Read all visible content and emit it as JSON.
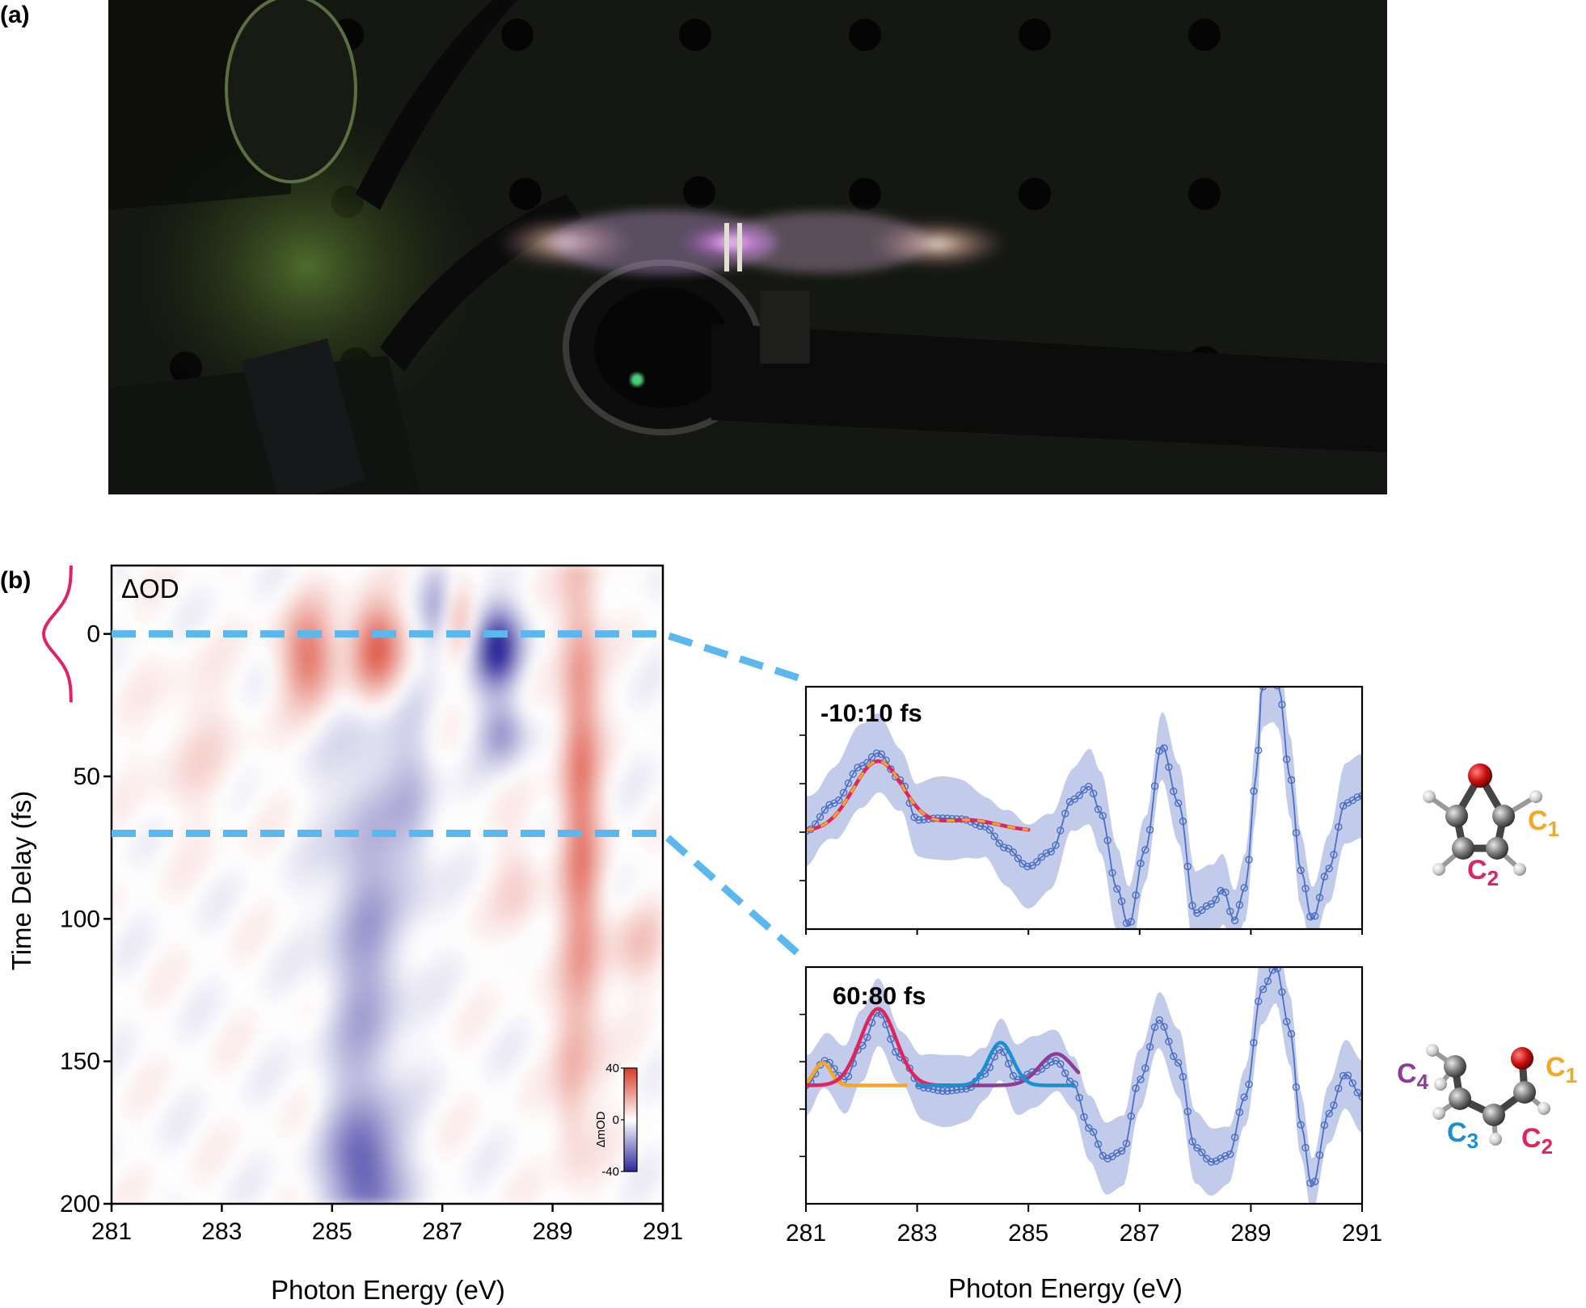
{
  "panel_labels": {
    "a": "(a)",
    "b": "(b)"
  },
  "colors": {
    "background": "#ffffff",
    "axis": "#000000",
    "positive": "#e8553b",
    "negative": "#3a36a8",
    "dashed_guides": "#5bb8ee",
    "pump_pulse": "#e0245e",
    "data_points": "#4a6fc4",
    "uncertainty_band": "#b7c3e6",
    "fit_red": "#e0245e",
    "fit_orange": "#f5a623",
    "fit_blue": "#1b8fd1",
    "fit_purple": "#8e3d97",
    "oxygen": "#cc1111",
    "carbon": "#6a6a6a",
    "hydrogen": "#d6d6d6"
  },
  "photo": {
    "description_icon": "photograph-of-laser-plasma-in-gas-cell"
  },
  "chart_data": [
    {
      "type": "heatmap",
      "title": "ΔOD",
      "xlabel": "Photon Energy (eV)",
      "ylabel": "Time Delay (fs)",
      "xlim": [
        281,
        291
      ],
      "ylim": [
        -24,
        200
      ],
      "xticks": [
        281,
        283,
        285,
        287,
        289,
        291
      ],
      "yticks": [
        0,
        50,
        100,
        150,
        200
      ],
      "y_inverted": true,
      "colorbar": {
        "label": "ΔmOD",
        "range": [
          -40,
          40
        ],
        "ticks": [
          40,
          0,
          -40
        ],
        "placement": "bottom-right"
      },
      "dashed_cuts_fs": [
        0,
        70
      ],
      "features": [
        {
          "x": 284.6,
          "y": 8,
          "sx": 0.35,
          "sy": 12,
          "amp": 28
        },
        {
          "x": 285.8,
          "y": 5,
          "sx": 0.35,
          "sy": 12,
          "amp": 34
        },
        {
          "x": 286.9,
          "y": -8,
          "sx": 0.2,
          "sy": 10,
          "amp": -14
        },
        {
          "x": 287.3,
          "y": -5,
          "sx": 0.2,
          "sy": 10,
          "amp": 12
        },
        {
          "x": 288.0,
          "y": 5,
          "sx": 0.3,
          "sy": 10,
          "amp": -40
        },
        {
          "x": 289.5,
          "y": 40,
          "sx": 0.25,
          "sy": 55,
          "amp": 24
        },
        {
          "x": 289.6,
          "y": 120,
          "sx": 0.28,
          "sy": 40,
          "amp": 10
        },
        {
          "x": 285.6,
          "y": 110,
          "sx": 0.5,
          "sy": 60,
          "amp": -16
        },
        {
          "x": 285.6,
          "y": 190,
          "sx": 0.45,
          "sy": 15,
          "amp": -26
        },
        {
          "x": 286.5,
          "y": 60,
          "sx": 0.3,
          "sy": 25,
          "amp": -10
        },
        {
          "x": 288.1,
          "y": 35,
          "sx": 0.3,
          "sy": 8,
          "amp": -18
        },
        {
          "x": 290.6,
          "y": 110,
          "sx": 0.4,
          "sy": 10,
          "amp": 10
        },
        {
          "x": 282.5,
          "y": 40,
          "sx": 0.6,
          "sy": 20,
          "amp": 6
        },
        {
          "x": 289.3,
          "y": 160,
          "sx": 0.2,
          "sy": 20,
          "amp": 9
        },
        {
          "x": 288.4,
          "y": 90,
          "sx": 0.3,
          "sy": 15,
          "amp": 8
        }
      ]
    },
    {
      "type": "line",
      "window_label": "-10:10 fs",
      "xlim": [
        281,
        291
      ],
      "xticks": [
        281,
        283,
        285,
        287,
        289,
        291
      ],
      "ylim": [
        -1.05,
        1.55
      ],
      "x": [
        281,
        281.5,
        282,
        282.3,
        282.7,
        283,
        283.4,
        283.8,
        284.2,
        284.6,
        285,
        285.4,
        285.8,
        286.1,
        286.3,
        286.6,
        286.8,
        287.1,
        287.4,
        287.7,
        288,
        288.3,
        288.5,
        288.7,
        288.9,
        289.1,
        289.2,
        289.4,
        289.5,
        289.7,
        289.9,
        290.1,
        290.4,
        290.7,
        291
      ],
      "values": [
        0,
        0.3,
        0.7,
        0.84,
        0.55,
        0.12,
        0.14,
        0.13,
        0.05,
        -0.18,
        -0.38,
        -0.22,
        0.34,
        0.48,
        0.2,
        -0.62,
        -1.02,
        -0.2,
        0.92,
        0.3,
        -0.88,
        -0.78,
        -0.62,
        -0.96,
        -0.6,
        0.6,
        1.55,
        1.62,
        1.55,
        0.6,
        -0.42,
        -0.95,
        -0.4,
        0.3,
        0.38
      ],
      "band": 0.45,
      "fits": [
        {
          "name": "",
          "color": "#e0245e",
          "x0": 281,
          "x1": 285,
          "dashed": false,
          "peaks": [
            {
              "c": 282.3,
              "w": 0.45,
              "a": 0.75
            },
            {
              "c": 283.9,
              "w": 0.55,
              "a": 0.12
            }
          ]
        },
        {
          "name": "",
          "color": "#f5a623",
          "x0": 281,
          "x1": 285,
          "dashed": true,
          "peaks": [
            {
              "c": 282.3,
              "w": 0.45,
              "a": 0.75
            },
            {
              "c": 283.9,
              "w": 0.55,
              "a": 0.12
            }
          ]
        }
      ]
    },
    {
      "type": "line",
      "window_label": "60:80 fs",
      "xlim": [
        281,
        291
      ],
      "xticks": [
        281,
        283,
        285,
        287,
        289,
        291
      ],
      "ylim": [
        -1.05,
        1.05
      ],
      "x": [
        281,
        281.35,
        281.7,
        282,
        282.3,
        282.7,
        283.1,
        283.5,
        283.9,
        284.2,
        284.5,
        284.8,
        285.1,
        285.5,
        285.8,
        286.1,
        286.4,
        286.7,
        287,
        287.35,
        287.7,
        288,
        288.3,
        288.6,
        288.9,
        289.2,
        289.45,
        289.7,
        289.9,
        290.1,
        290.4,
        290.7,
        291
      ],
      "values": [
        0,
        0.22,
        0.05,
        0.35,
        0.65,
        0.25,
        -0.02,
        -0.05,
        -0.03,
        0.1,
        0.32,
        0.05,
        0.12,
        0.22,
        0.02,
        -0.38,
        -0.65,
        -0.58,
        0.05,
        0.58,
        0.2,
        -0.55,
        -0.68,
        -0.62,
        -0.1,
        0.85,
        1.05,
        0.5,
        -0.35,
        -0.9,
        -0.25,
        0.1,
        -0.1
      ],
      "band": 0.32,
      "fits": [
        {
          "name": "",
          "color": "#f5a623",
          "x0": 281,
          "x1": 282.8,
          "dashed": false,
          "peaks": [
            {
              "c": 281.3,
              "w": 0.15,
              "a": 0.2
            }
          ]
        },
        {
          "name": "",
          "color": "#e0245e",
          "x0": 281,
          "x1": 284,
          "dashed": false,
          "peaks": [
            {
              "c": 282.3,
              "w": 0.32,
              "a": 0.68
            }
          ]
        },
        {
          "name": "",
          "color": "#8e3d97",
          "x0": 283.3,
          "x1": 285.9,
          "dashed": false,
          "peaks": [
            {
              "c": 285.5,
              "w": 0.3,
              "a": 0.28
            }
          ]
        },
        {
          "name": "",
          "color": "#1b8fd1",
          "x0": 283.0,
          "x1": 285.8,
          "dashed": false,
          "peaks": [
            {
              "c": 284.5,
              "w": 0.22,
              "a": 0.38
            }
          ]
        }
      ]
    }
  ],
  "molecules": {
    "top": {
      "labels": [
        {
          "base": "C",
          "sub": "1",
          "color": "#f5a623"
        },
        {
          "base": "C",
          "sub": "2",
          "color": "#e0245e"
        }
      ]
    },
    "bottom": {
      "labels": [
        {
          "base": "C",
          "sub": "4",
          "color": "#8e3d97"
        },
        {
          "base": "C",
          "sub": "1",
          "color": "#f5a623"
        },
        {
          "base": "C",
          "sub": "3",
          "color": "#1b8fd1"
        },
        {
          "base": "C",
          "sub": "2",
          "color": "#e0245e"
        }
      ]
    }
  }
}
